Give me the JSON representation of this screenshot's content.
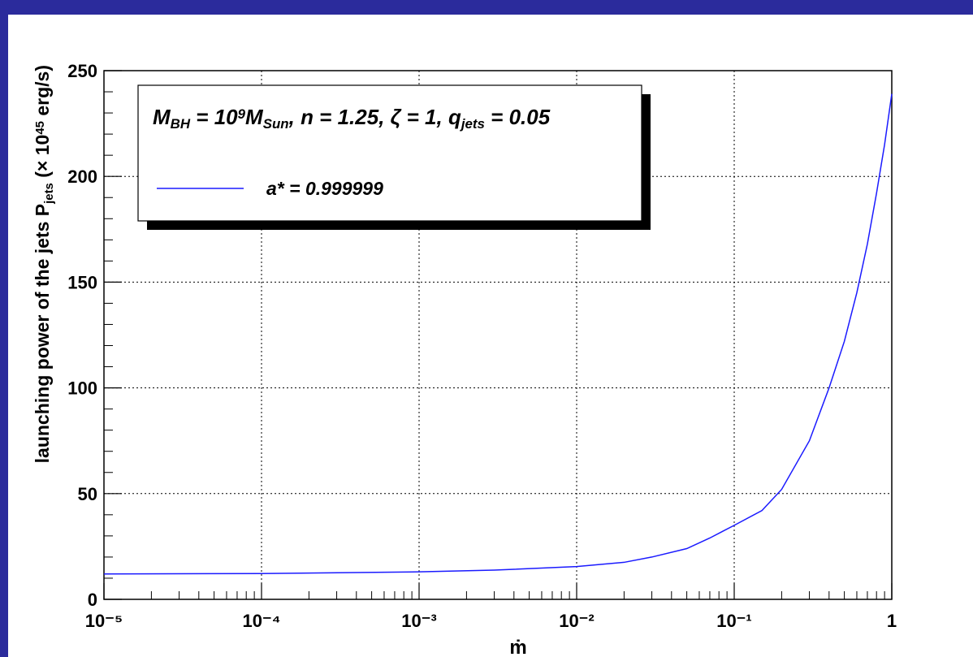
{
  "chart_data": {
    "type": "line",
    "legend_header": [
      {
        "text": "M"
      },
      {
        "text": "BH",
        "pos": "sub"
      },
      {
        "text": " = 10"
      },
      {
        "text": "9",
        "pos": "sup"
      },
      {
        "text": "M"
      },
      {
        "text": "Sun",
        "pos": "sub"
      },
      {
        "text": ", n = 1.25, ζ = 1, q"
      },
      {
        "text": "jets",
        "pos": "sub"
      },
      {
        "text": " = 0.05"
      }
    ],
    "xlabel": "ṁ",
    "ylabel": [
      {
        "text": "launching power of the jets P"
      },
      {
        "text": "jets",
        "pos": "sub"
      },
      {
        "text": " (× 10"
      },
      {
        "text": "45",
        "pos": "sup"
      },
      {
        "text": " erg/s)"
      }
    ],
    "x": [
      1e-05,
      0.0001,
      0.001,
      0.003,
      0.01,
      0.02,
      0.03,
      0.05,
      0.07,
      0.1,
      0.15,
      0.2,
      0.3,
      0.4,
      0.5,
      0.6,
      0.7,
      0.8,
      0.9,
      1
    ],
    "series": [
      {
        "name": "a* = 0.999999",
        "color": "#1a1aff",
        "values": [
          12,
          12.2,
          13,
          13.8,
          15.5,
          17.5,
          20,
          24,
          29,
          35,
          42,
          52,
          75,
          100,
          122,
          145,
          168,
          192,
          215,
          239
        ]
      }
    ],
    "xscale": "log",
    "xlim": [
      1e-05,
      1
    ],
    "xticks": [
      {
        "value": 1e-05,
        "label": "10⁻⁵"
      },
      {
        "value": 0.0001,
        "label": "10⁻⁴"
      },
      {
        "value": 0.001,
        "label": "10⁻³"
      },
      {
        "value": 0.01,
        "label": "10⁻²"
      },
      {
        "value": 0.1,
        "label": "10⁻¹"
      },
      1
    ],
    "ylim": [
      0,
      250
    ],
    "yticks": [
      0,
      50,
      100,
      150,
      200,
      250
    ],
    "grid": true
  }
}
